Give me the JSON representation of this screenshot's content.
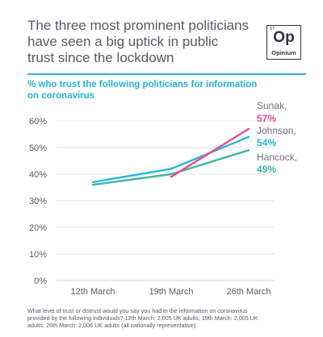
{
  "headline": [
    "The three most prominent politicians",
    "have seen a big uptick in public",
    "trust since the lockdown"
  ],
  "logo": {
    "small": "ST",
    "big": "Op",
    "word": "Opinium"
  },
  "subtitle": [
    "% who trust the following politicians for information",
    "on coronavirus"
  ],
  "footnote": [
    "What level of trust or distrust would you say you had in the information on coronavirus",
    "provided by the following individuals? 12th March: 2,005 UK adults; 19th March: 2,005 UK",
    "adults; 26th March: 2,006 UK adults (all nationally representative)"
  ],
  "chart_data": {
    "type": "line",
    "categories": [
      "12th March",
      "19th March",
      "26th March"
    ],
    "yticks": [
      "0%",
      "10%",
      "20%",
      "30%",
      "40%",
      "50%",
      "60%"
    ],
    "ylim": [
      0,
      60
    ],
    "grid": true,
    "series": [
      {
        "name": "Sunak,",
        "end_label": "57%",
        "color": "#e84c8b",
        "values": [
          null,
          39,
          57
        ]
      },
      {
        "name": "Johnson,",
        "end_label": "54%",
        "color": "#27b6dd",
        "values": [
          37,
          42,
          54
        ]
      },
      {
        "name": "Hancock,",
        "end_label": "49%",
        "color": "#3bb7a0",
        "values": [
          36,
          40,
          49
        ]
      }
    ]
  }
}
